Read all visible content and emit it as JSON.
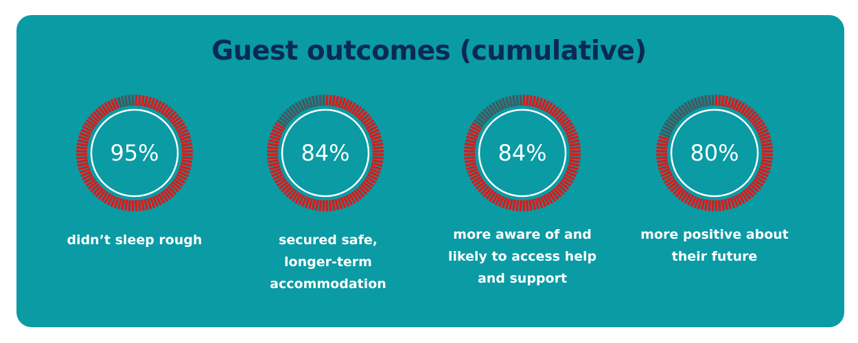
{
  "title": "Guest outcomes (cumulative)",
  "colors": {
    "background": "#0a9ba5",
    "title": "#0b2a52",
    "filled_ticks": "#d51c1c",
    "empty_ticks": "#3f5b60",
    "inner_ring": "#ffffff"
  },
  "chart_data": {
    "type": "pie",
    "title": "Guest outcomes (cumulative)",
    "unit": "%",
    "items": [
      {
        "value": 95,
        "label": "95%",
        "caption": "didn’t sleep rough"
      },
      {
        "value": 84,
        "label": "84%",
        "caption": "secured safe, longer-term accommodation"
      },
      {
        "value": 84,
        "label": "84%",
        "caption": "more aware of and likely to access help and support"
      },
      {
        "value": 80,
        "label": "80%",
        "caption": "more positive about their future"
      }
    ]
  }
}
